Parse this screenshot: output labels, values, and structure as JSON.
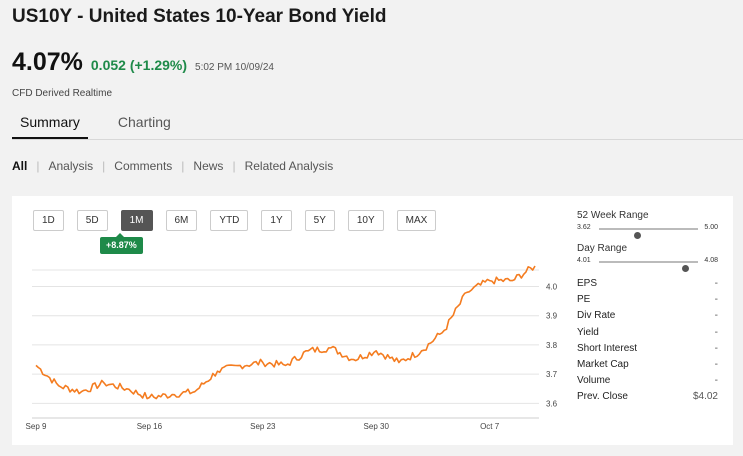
{
  "header": {
    "title": "US10Y - United States 10-Year Bond Yield",
    "price": "4.07%",
    "change": "0.052 (+1.29%)",
    "timestamp": "5:02 PM 10/09/24",
    "source_note": "CFD Derived Realtime",
    "accent_color": "#1e8a49"
  },
  "tabs": [
    {
      "label": "Summary",
      "active": true
    },
    {
      "label": "Charting",
      "active": false
    }
  ],
  "subnav": [
    {
      "label": "All",
      "active": true
    },
    {
      "label": "Analysis"
    },
    {
      "label": "Comments"
    },
    {
      "label": "News"
    },
    {
      "label": "Related Analysis"
    }
  ],
  "ranges": [
    "1D",
    "5D",
    "1M",
    "6M",
    "YTD",
    "1Y",
    "5Y",
    "10Y",
    "MAX"
  ],
  "active_range": "1M",
  "range_performance": "+8.87%",
  "side": {
    "week52": {
      "label": "52 Week Range",
      "low": "3.62",
      "high": "5.00",
      "position": 0.38
    },
    "day": {
      "label": "Day Range",
      "low": "4.01",
      "high": "4.08",
      "position": 0.87
    },
    "stats": [
      {
        "label": "EPS",
        "value": "-"
      },
      {
        "label": "PE",
        "value": "-"
      },
      {
        "label": "Div Rate",
        "value": "-"
      },
      {
        "label": "Yield",
        "value": "-"
      },
      {
        "label": "Short Interest",
        "value": "-"
      },
      {
        "label": "Market Cap",
        "value": "-"
      },
      {
        "label": "Volume",
        "value": "-"
      },
      {
        "label": "Prev. Close",
        "value": "$4.02"
      }
    ]
  },
  "chart_data": {
    "type": "line",
    "line_color": "#f47c20",
    "ylim": [
      3.55,
      4.07
    ],
    "y_ticks": [
      "4.0",
      "3.9",
      "3.8",
      "3.7",
      "3.6"
    ],
    "x_ticks": [
      "Sep 9",
      "Sep 16",
      "Sep 23",
      "Sep 30",
      "Oct 7"
    ],
    "grid": "horizontal",
    "series": [
      {
        "points": [
          [
            "Sep 9",
            3.73
          ],
          [
            "Sep 10",
            3.66
          ],
          [
            "Sep 11",
            3.64
          ],
          [
            "Sep 12",
            3.67
          ],
          [
            "Sep 13",
            3.65
          ],
          [
            "Sep 16",
            3.62
          ],
          [
            "Sep 17",
            3.63
          ],
          [
            "Sep 18",
            3.64
          ],
          [
            "Sep 19",
            3.71
          ],
          [
            "Sep 20",
            3.73
          ],
          [
            "Sep 23",
            3.74
          ],
          [
            "Sep 24",
            3.73
          ],
          [
            "Sep 25",
            3.78
          ],
          [
            "Sep 26",
            3.79
          ],
          [
            "Sep 27",
            3.75
          ],
          [
            "Sep 30",
            3.78
          ],
          [
            "Oct 1",
            3.74
          ],
          [
            "Oct 2",
            3.78
          ],
          [
            "Oct 3",
            3.85
          ],
          [
            "Oct 4",
            3.98
          ],
          [
            "Oct 7",
            4.02
          ],
          [
            "Oct 8",
            4.02
          ],
          [
            "Oct 9",
            4.07
          ]
        ]
      }
    ]
  }
}
